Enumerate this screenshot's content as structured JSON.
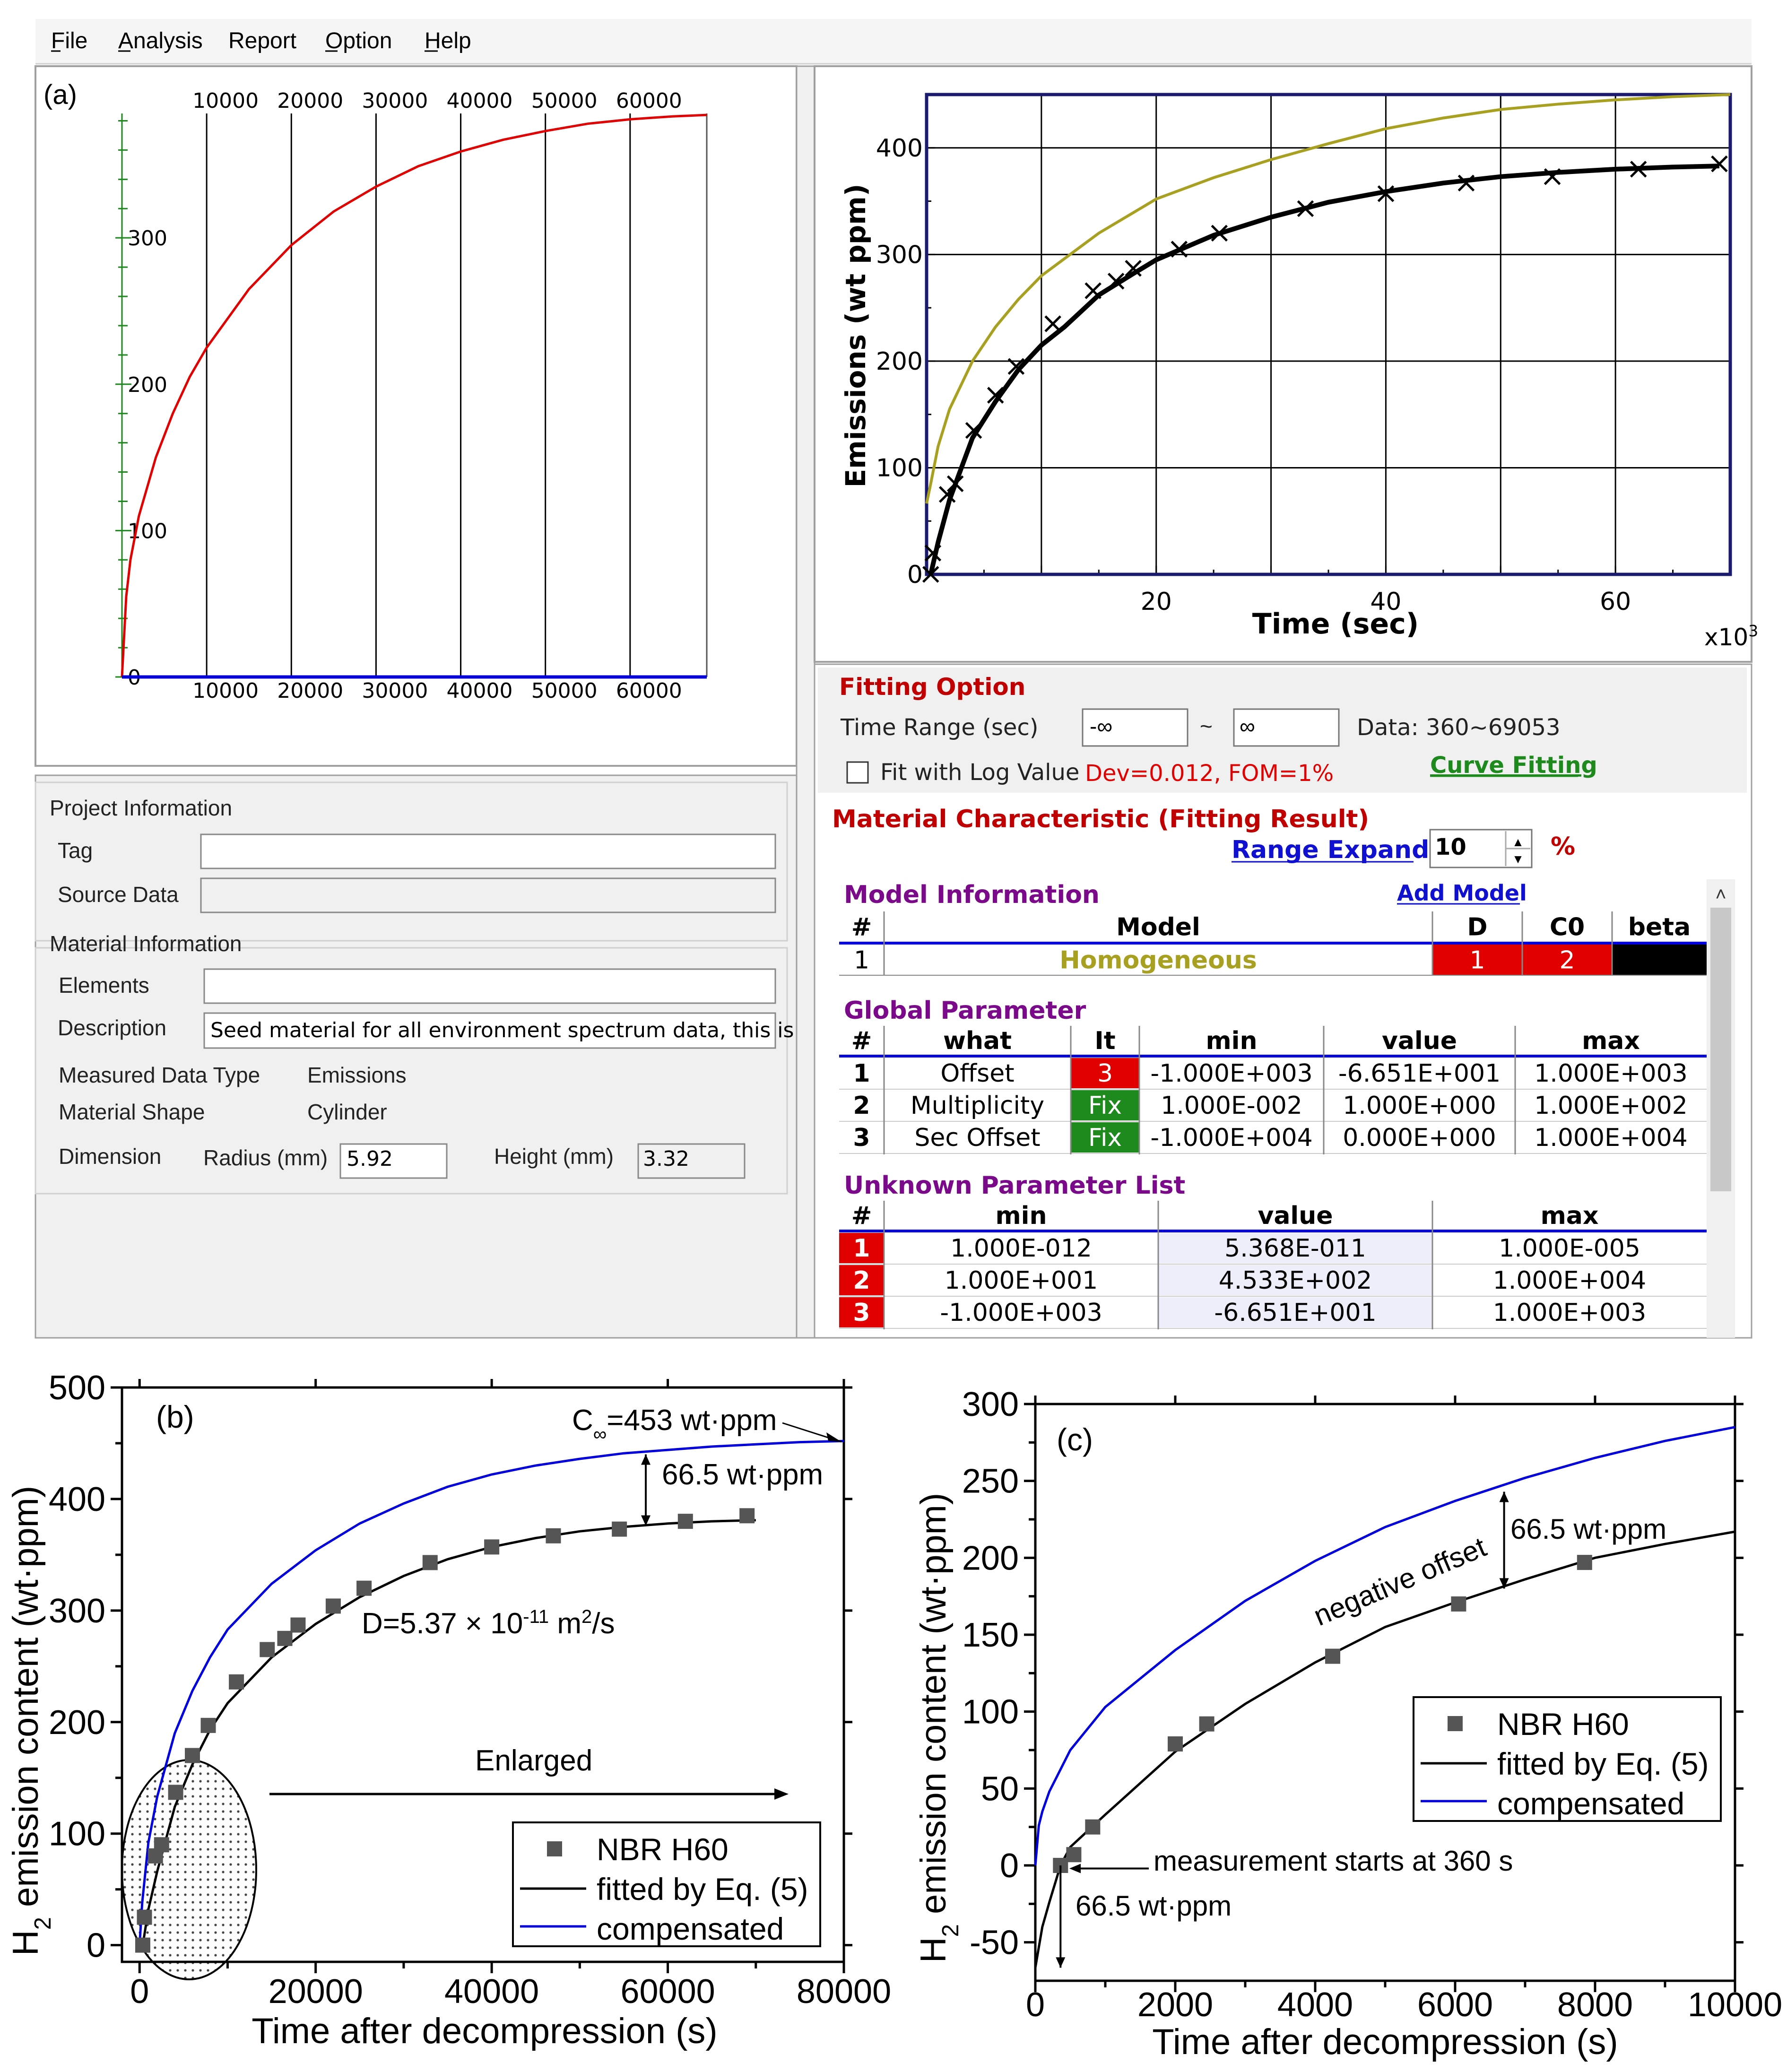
{
  "menu": {
    "items": [
      "File",
      "Analysis",
      "Report",
      "Option",
      "Help"
    ]
  },
  "panel_a": {
    "label": "(a)",
    "top_ticks": [
      "10000",
      "20000",
      "30000",
      "40000",
      "50000",
      "60000"
    ],
    "bottom_ticks": [
      "10000",
      "20000",
      "30000",
      "40000",
      "50000",
      "60000"
    ],
    "y_ticks": [
      "0",
      "100",
      "200",
      "300"
    ]
  },
  "panel_top_right": {
    "ylabel": "Emissions (wt ppm)",
    "xlabel": "Time (sec)",
    "x_multiplier": "x10",
    "x_multiplier_exp": "3",
    "x_ticks": [
      "20",
      "40",
      "60"
    ],
    "y_ticks": [
      "0",
      "100",
      "200",
      "300",
      "400"
    ]
  },
  "project": {
    "title": "Project Information",
    "tag_label": "Tag",
    "tag_value": "",
    "source_label": "Source Data",
    "source_value": ""
  },
  "material": {
    "title": "Material Information",
    "elements_label": "Elements",
    "elements_value": "",
    "description_label": "Description",
    "description_value": "Seed material for all environment spectrum data, this is",
    "measured_type_label": "Measured Data Type",
    "measured_type_value": "Emissions",
    "shape_label": "Material Shape",
    "shape_value": "Cylinder",
    "dimension_label": "Dimension",
    "radius_label": "Radius (mm)",
    "radius_value": "5.92",
    "height_label": "Height (mm)",
    "height_value": "3.32"
  },
  "fitting": {
    "title": "Fitting Option",
    "time_range_label": "Time Range (sec)",
    "time_from": "-∞",
    "tilde": "~",
    "time_to": "∞",
    "data_range": "Data: 360~69053",
    "log_label": "Fit with Log Value",
    "stats": "Dev=0.012,  FOM=1%",
    "curve_fitting": "Curve Fitting"
  },
  "material_char": {
    "title": "Material Characteristic (Fitting Result)",
    "range_expand": "Range Expand",
    "range_value": "10",
    "percent": "%"
  },
  "model_info": {
    "title": "Model Information",
    "add_model": "Add Model",
    "headers": [
      "#",
      "Model",
      "D",
      "C0",
      "beta"
    ],
    "row": [
      "1",
      "Homogeneous",
      "1",
      "2",
      ""
    ]
  },
  "global_param": {
    "title": "Global Parameter",
    "headers": [
      "#",
      "what",
      "It",
      "min",
      "value",
      "max"
    ],
    "rows": [
      [
        "1",
        "Offset",
        "3",
        "-1.000E+003",
        "-6.651E+001",
        "1.000E+003"
      ],
      [
        "2",
        "Multiplicity",
        "Fix",
        "1.000E-002",
        "1.000E+000",
        "1.000E+002"
      ],
      [
        "3",
        "Sec Offset",
        "Fix",
        "-1.000E+004",
        "0.000E+000",
        "1.000E+004"
      ]
    ]
  },
  "unknown_param": {
    "title": "Unknown Parameter List",
    "headers": [
      "#",
      "min",
      "value",
      "max"
    ],
    "rows": [
      [
        "1",
        "1.000E-012",
        "5.368E-011",
        "1.000E-005"
      ],
      [
        "2",
        "1.000E+001",
        "4.533E+002",
        "1.000E+004"
      ],
      [
        "3",
        "-1.000E+003",
        "-6.651E+001",
        "1.000E+003"
      ]
    ]
  },
  "colors": {
    "red": "#e00000",
    "olive": "#a8a020",
    "blue": "#0000dd",
    "green": "#1e8a1e",
    "purple": "#7a0a8a",
    "darkred": "#c00000",
    "link": "#1010d0"
  },
  "panel_b": {
    "label": "(b)",
    "ylabel_prefix": "H",
    "ylabel_sub": "2",
    "ylabel_rest": " emission content (wt·ppm)",
    "xlabel": "Time after decompression (s)",
    "c_inf_prefix": "C",
    "c_inf_sub": "∞",
    "c_inf_rest": "=453 wt·ppm",
    "offset_label": "66.5 wt·ppm",
    "d_prefix": "D=5.37 × 10",
    "d_exp": "-11",
    "d_unit": " m",
    "d_unit_exp": "2",
    "d_suffix": "/s",
    "enlarged": "Enlarged",
    "legend": [
      "NBR H60",
      "fitted by Eq. (5)",
      "compensated"
    ],
    "x_ticks": [
      "0",
      "20000",
      "40000",
      "60000",
      "80000"
    ],
    "y_ticks": [
      "0",
      "100",
      "200",
      "300",
      "400",
      "500"
    ]
  },
  "panel_c": {
    "label": "(c)",
    "ylabel_prefix": "H",
    "ylabel_sub": "2",
    "ylabel_rest": " emission content (wt·ppm)",
    "xlabel": "Time after decompression (s)",
    "offset_label": "66.5 wt·ppm",
    "negative_offset": "negative offset",
    "start_note": "measurement starts at 360 s",
    "start_offset_label": "66.5 wt·ppm",
    "legend": [
      "NBR H60",
      "fitted by Eq. (5)",
      "compensated"
    ],
    "x_ticks": [
      "0",
      "2000",
      "4000",
      "6000",
      "8000",
      "10000"
    ],
    "y_ticks": [
      "-50",
      "0",
      "50",
      "100",
      "150",
      "200",
      "250",
      "300"
    ]
  },
  "chart_data": [
    {
      "type": "line",
      "id": "a",
      "title": "(a)",
      "xlim": [
        0,
        69053
      ],
      "ylim": [
        0,
        385
      ],
      "series": [
        {
          "name": "fitted",
          "color": "#e00000",
          "x": [
            0,
            500,
            1000,
            2000,
            4000,
            6000,
            8000,
            10000,
            15000,
            20000,
            25000,
            30000,
            35000,
            40000,
            45000,
            50000,
            55000,
            60000,
            65000,
            69053
          ],
          "y": [
            0,
            55,
            80,
            110,
            150,
            180,
            205,
            225,
            265,
            295,
            318,
            335,
            349,
            359,
            367,
            373,
            378,
            381,
            383,
            384
          ]
        },
        {
          "name": "baseline",
          "color": "#0000dd",
          "x": [
            0,
            69053
          ],
          "y": [
            0,
            0
          ]
        }
      ]
    },
    {
      "type": "line",
      "id": "top-right",
      "xlabel": "Time (sec)",
      "ylabel": "Emissions (wt ppm)",
      "xlim": [
        0,
        70
      ],
      "ylim": [
        0,
        450
      ],
      "series": [
        {
          "name": "compensated",
          "color": "#a8a020",
          "x": [
            0,
            0.36,
            1,
            2,
            4,
            6,
            8,
            10,
            15,
            20,
            25,
            30,
            35,
            40,
            45,
            50,
            55,
            60,
            65,
            70
          ],
          "y": [
            66.5,
            85,
            120,
            155,
            200,
            232,
            258,
            280,
            320,
            352,
            372,
            389,
            404,
            418,
            428,
            436,
            441,
            445,
            448,
            450
          ]
        },
        {
          "name": "fitted",
          "color": "#000000",
          "x": [
            0.36,
            1,
            2,
            4,
            6,
            8,
            10,
            12,
            15,
            18,
            20,
            25,
            30,
            35,
            40,
            45,
            50,
            55,
            60,
            65,
            69.05
          ],
          "y": [
            0,
            30,
            70,
            128,
            162,
            192,
            215,
            232,
            262,
            282,
            295,
            318,
            335,
            349,
            359,
            367,
            373,
            377,
            380,
            382,
            383
          ]
        },
        {
          "name": "data",
          "type": "scatter",
          "marker": "x",
          "x": [
            0.36,
            0.55,
            1.8,
            2.5,
            4.1,
            6.0,
            7.8,
            11.0,
            14.5,
            16.5,
            18.0,
            22.0,
            25.5,
            33.0,
            40.0,
            47.0,
            54.5,
            62.0,
            69.05
          ],
          "y": [
            0,
            20,
            75,
            85,
            135,
            168,
            195,
            235,
            266,
            275,
            287,
            305,
            320,
            343,
            357,
            367,
            373,
            380,
            385
          ]
        }
      ]
    },
    {
      "type": "scatter",
      "id": "b",
      "title": "(b)",
      "xlabel": "Time after decompression (s)",
      "ylabel": "H2 emission content (wt·ppm)",
      "xlim": [
        -2000,
        80000
      ],
      "ylim": [
        -15,
        500
      ],
      "series": [
        {
          "name": "NBR H60",
          "type": "scatter",
          "x": [
            360,
            550,
            1800,
            2500,
            4100,
            6000,
            7800,
            11000,
            14500,
            16500,
            18000,
            22000,
            25500,
            33000,
            40000,
            47000,
            54500,
            62000,
            69000
          ],
          "y": [
            0,
            25,
            80,
            90,
            137,
            170,
            197,
            236,
            265,
            275,
            287,
            304,
            320,
            343,
            357,
            367,
            373,
            380,
            385
          ]
        },
        {
          "name": "fitted by Eq. (5)",
          "type": "line",
          "x": [
            360,
            500,
            1000,
            2000,
            4000,
            6000,
            8000,
            10000,
            15000,
            20000,
            25000,
            30000,
            35000,
            40000,
            45000,
            50000,
            55000,
            60000,
            65000,
            70000
          ],
          "y": [
            0,
            7,
            32,
            66,
            124,
            162,
            193,
            217,
            258,
            288,
            312,
            331,
            346,
            357,
            365,
            371,
            375,
            378,
            380,
            381
          ]
        },
        {
          "name": "compensated",
          "type": "line",
          "x": [
            0,
            300,
            1000,
            2000,
            4000,
            6000,
            8000,
            10000,
            15000,
            20000,
            25000,
            30000,
            35000,
            40000,
            45000,
            50000,
            55000,
            60000,
            65000,
            70000,
            75000,
            80000
          ],
          "y": [
            0,
            38,
            92,
            133,
            190,
            228,
            258,
            283,
            324,
            354,
            378,
            396,
            411,
            422,
            430,
            436,
            441,
            444,
            447,
            449,
            451,
            452
          ]
        }
      ]
    },
    {
      "type": "scatter",
      "id": "c",
      "title": "(c)",
      "xlabel": "Time after decompression (s)",
      "ylabel": "H2 emission content (wt·ppm)",
      "xlim": [
        0,
        10000
      ],
      "ylim": [
        -50,
        300
      ],
      "series": [
        {
          "name": "NBR H60",
          "type": "scatter",
          "x": [
            360,
            550,
            820,
            2000,
            2450,
            4250,
            6050,
            7850
          ],
          "y": [
            0,
            7,
            25,
            79,
            92,
            136,
            170,
            197
          ]
        },
        {
          "name": "fitted by Eq. (5)",
          "type": "line",
          "x": [
            0,
            100,
            200,
            360,
            500,
            1000,
            2000,
            3000,
            4000,
            5000,
            6000,
            7000,
            8000,
            9000,
            10000
          ],
          "y": [
            -66.5,
            -40,
            -24,
            0,
            12,
            33,
            74,
            105,
            132,
            155,
            171,
            186,
            200,
            209,
            217
          ]
        },
        {
          "name": "compensated",
          "type": "line",
          "x": [
            0,
            50,
            100,
            200,
            500,
            1000,
            2000,
            3000,
            4000,
            5000,
            6000,
            7000,
            8000,
            9000,
            10000
          ],
          "y": [
            0,
            26,
            35,
            48,
            75,
            103,
            140,
            172,
            198,
            220,
            237,
            252,
            265,
            276,
            285
          ]
        }
      ]
    }
  ]
}
